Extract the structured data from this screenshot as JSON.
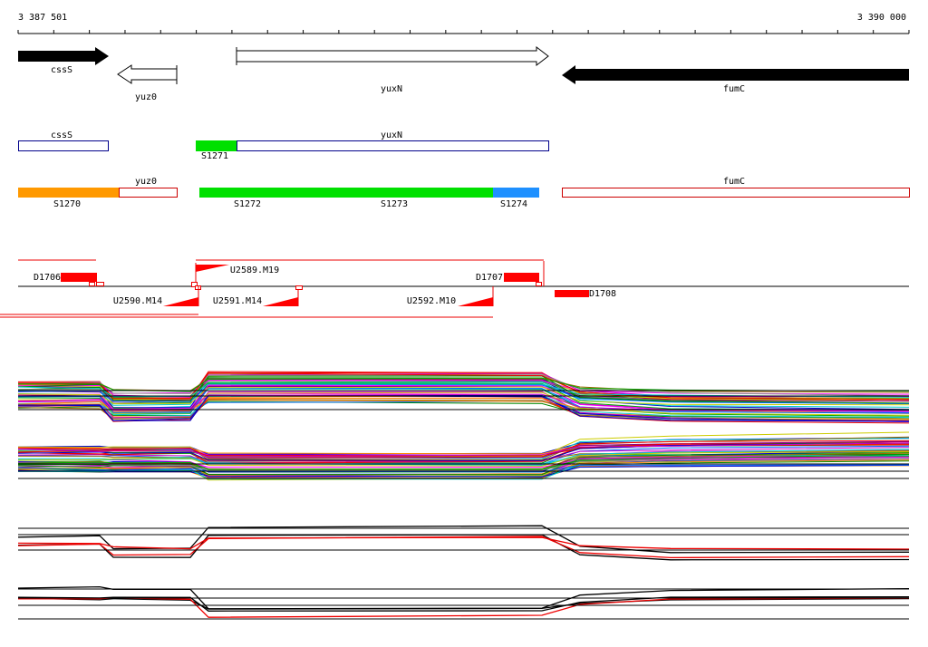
{
  "ruler": {
    "start": "3 387 501",
    "end": "3 390 000"
  },
  "genes": [
    {
      "label": "cssS"
    },
    {
      "label": "yuz0"
    },
    {
      "label": "yuxN"
    },
    {
      "label": "fumC"
    }
  ],
  "transcripts": [
    {
      "label": "cssS"
    },
    {
      "label": "yuxN"
    },
    {
      "label": "yuz0"
    },
    {
      "label": "fumC"
    }
  ],
  "segments": [
    "S1270",
    "S1271",
    "S1272",
    "S1273",
    "S1274"
  ],
  "features": [
    "D1706",
    "U2589.M19",
    "D1707",
    "D1708",
    "U2590.M14",
    "U2591.M14",
    "U2592.M10"
  ]
}
